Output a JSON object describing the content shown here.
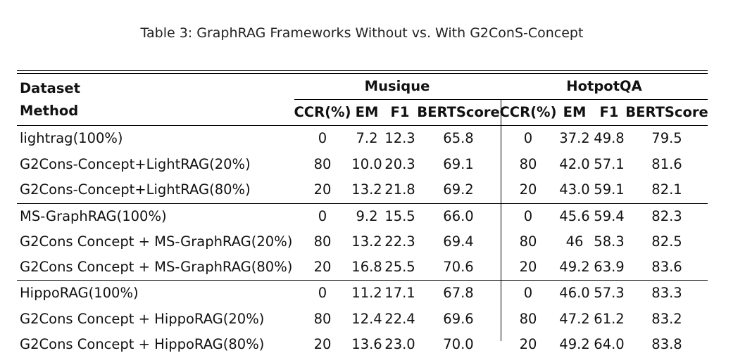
{
  "caption": "Table 3: GraphRAG Frameworks Without vs. With G2ConS-Concept",
  "header": {
    "dataset_label": "Dataset",
    "method_label": "Method",
    "groups": [
      "Musique",
      "HotpotQA"
    ],
    "columns": [
      "CCR(%)",
      "EM",
      "F1",
      "BERTScore",
      "CCR(%)",
      "EM",
      "F1",
      "BERTScore"
    ]
  },
  "rows": [
    {
      "method": "lightrag(100%)",
      "values": [
        "0",
        "7.2",
        "12.3",
        "65.8",
        "0",
        "37.2",
        "49.8",
        "79.5"
      ]
    },
    {
      "method": "G2Cons-Concept+LightRAG(20%)",
      "values": [
        "80",
        "10.0",
        "20.3",
        "69.1",
        "80",
        "42.0",
        "57.1",
        "81.6"
      ]
    },
    {
      "method": "G2Cons-Concept+LightRAG(80%)",
      "values": [
        "20",
        "13.2",
        "21.8",
        "69.2",
        "20",
        "43.0",
        "59.1",
        "82.1"
      ]
    },
    {
      "method": "MS-GraphRAG(100%)",
      "values": [
        "0",
        "9.2",
        "15.5",
        "66.0",
        "0",
        "45.6",
        "59.4",
        "82.3"
      ]
    },
    {
      "method": "G2Cons Concept + MS-GraphRAG(20%)",
      "values": [
        "80",
        "13.2",
        "22.3",
        "69.4",
        "80",
        "46",
        "58.3",
        "82.5"
      ]
    },
    {
      "method": "G2Cons Concept + MS-GraphRAG(80%)",
      "values": [
        "20",
        "16.8",
        "25.5",
        "70.6",
        "20",
        "49.2",
        "63.9",
        "83.6"
      ]
    },
    {
      "method": "HippoRAG(100%)",
      "values": [
        "0",
        "11.2",
        "17.1",
        "67.8",
        "0",
        "46.0",
        "57.3",
        "83.3"
      ]
    },
    {
      "method": "G2Cons Concept + HippoRAG(20%)",
      "values": [
        "80",
        "12.4",
        "22.4",
        "69.6",
        "80",
        "47.2",
        "61.2",
        "83.2"
      ]
    },
    {
      "method": "G2Cons Concept + HippoRAG(80%)",
      "values": [
        "20",
        "13.6",
        "23.0",
        "70.0",
        "20",
        "49.2",
        "64.0",
        "83.8"
      ]
    }
  ]
}
